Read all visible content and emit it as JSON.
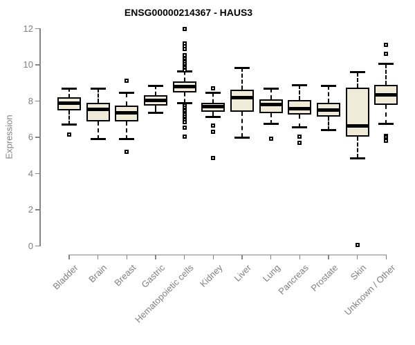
{
  "chart_data": {
    "type": "boxplot",
    "title": "ENSG00000214367 - HAUS3",
    "xlabel": "",
    "ylabel": "Expression",
    "ylim": [
      0,
      12
    ],
    "yticks": [
      0,
      2,
      4,
      6,
      8,
      10,
      12
    ],
    "grid": false,
    "legend": false,
    "box_fill_color": "#f0ebd8",
    "box_border_color": "#000000",
    "axis_color": "#858585",
    "label_color": "#808080",
    "title_color": "#000000",
    "categories": [
      "Bladder",
      "Brain",
      "Breast",
      "Gastric",
      "Hematopoietic cells",
      "Kidney",
      "Liver",
      "Lung",
      "Pancreas",
      "Prostate",
      "Skin",
      "Unknown / Other"
    ],
    "series": [
      {
        "category": "Bladder",
        "whisker_low": 6.7,
        "q1": 7.5,
        "median": 7.9,
        "q3": 8.2,
        "whisker_high": 8.7,
        "outliers": [
          6.15
        ]
      },
      {
        "category": "Brain",
        "whisker_low": 5.9,
        "q1": 6.9,
        "median": 7.55,
        "q3": 7.9,
        "whisker_high": 8.7,
        "outliers": []
      },
      {
        "category": "Breast",
        "whisker_low": 5.9,
        "q1": 6.9,
        "median": 7.35,
        "q3": 7.75,
        "whisker_high": 8.45,
        "outliers": [
          9.15,
          5.2
        ]
      },
      {
        "category": "Gastric",
        "whisker_low": 7.35,
        "q1": 7.75,
        "median": 8.05,
        "q3": 8.35,
        "whisker_high": 8.85,
        "outliers": []
      },
      {
        "category": "Hematopoietic cells",
        "whisker_low": 7.9,
        "q1": 8.5,
        "median": 8.8,
        "q3": 9.1,
        "whisker_high": 9.65,
        "outliers": [
          12.0,
          11.2,
          11.05,
          10.9,
          10.55,
          10.35,
          10.25,
          10.15,
          10.05,
          9.95,
          9.85,
          9.75,
          9.7,
          7.75,
          7.65,
          7.55,
          7.45,
          7.35,
          7.25,
          7.15,
          7.05,
          6.95,
          6.85,
          6.55,
          6.05
        ]
      },
      {
        "category": "Kidney",
        "whisker_low": 7.15,
        "q1": 7.4,
        "median": 7.7,
        "q3": 7.9,
        "whisker_high": 8.45,
        "outliers": [
          8.7,
          6.65,
          6.3,
          4.85
        ]
      },
      {
        "category": "Liver",
        "whisker_low": 6.0,
        "q1": 7.4,
        "median": 8.2,
        "q3": 8.65,
        "whisker_high": 9.85,
        "outliers": []
      },
      {
        "category": "Lung",
        "whisker_low": 6.75,
        "q1": 7.35,
        "median": 7.8,
        "q3": 8.1,
        "whisker_high": 8.7,
        "outliers": [
          5.95
        ]
      },
      {
        "category": "Pancreas",
        "whisker_low": 6.55,
        "q1": 7.25,
        "median": 7.6,
        "q3": 8.05,
        "whisker_high": 8.9,
        "outliers": [
          6.05,
          5.7
        ]
      },
      {
        "category": "Prostate",
        "whisker_low": 6.4,
        "q1": 7.15,
        "median": 7.5,
        "q3": 7.9,
        "whisker_high": 8.85,
        "outliers": []
      },
      {
        "category": "Skin",
        "whisker_low": 4.85,
        "q1": 6.05,
        "median": 6.65,
        "q3": 8.75,
        "whisker_high": 9.6,
        "outliers": [
          0.05
        ]
      },
      {
        "category": "Unknown / Other",
        "whisker_low": 6.75,
        "q1": 7.8,
        "median": 8.35,
        "q3": 8.9,
        "whisker_high": 10.05,
        "outliers": [
          11.1,
          10.6,
          6.1,
          6.0,
          5.9,
          5.8
        ]
      }
    ]
  }
}
